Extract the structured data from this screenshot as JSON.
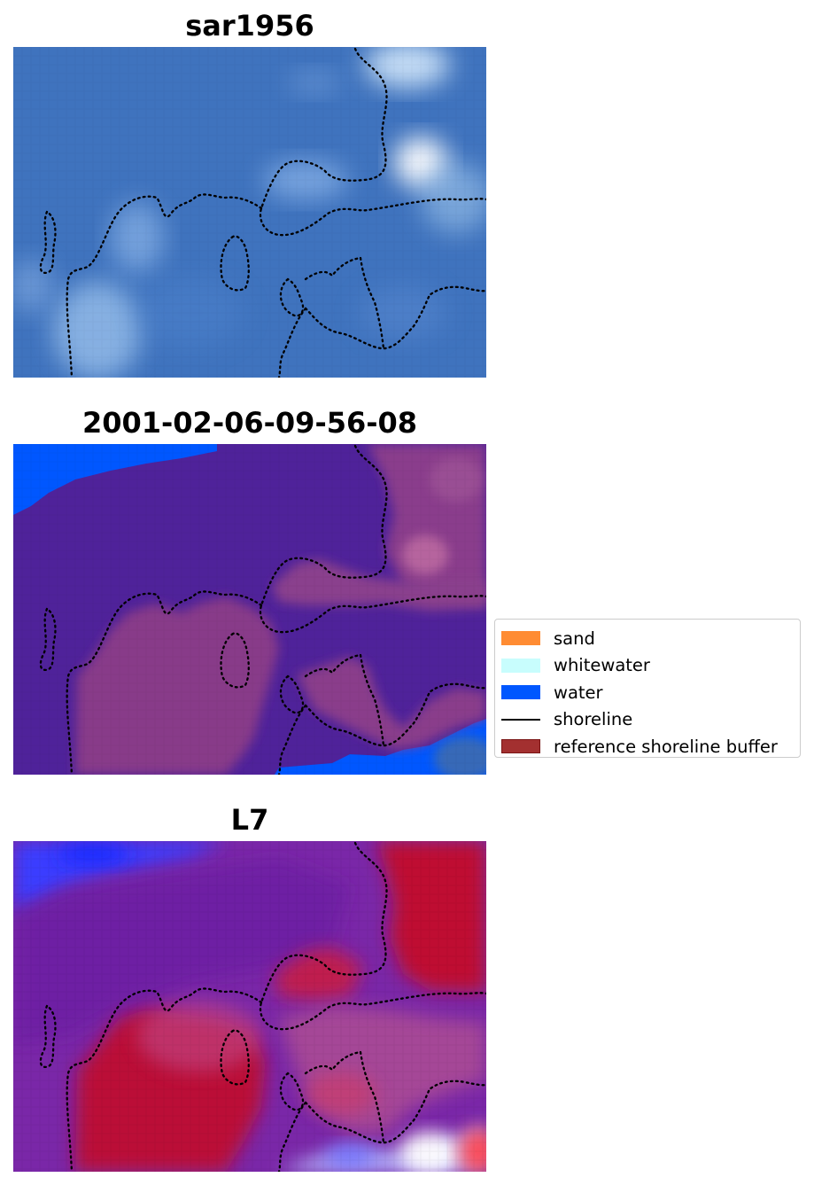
{
  "panels": [
    {
      "id": "sar",
      "title": "sar1956"
    },
    {
      "id": "classified",
      "title": "2001-02-06-09-56-08"
    },
    {
      "id": "index",
      "title": "L7"
    }
  ],
  "legend": {
    "items": [
      {
        "label": "sand",
        "kind": "patch",
        "color": "#ff8c33"
      },
      {
        "label": "whitewater",
        "kind": "patch",
        "color": "#c8fdfd"
      },
      {
        "label": "water",
        "kind": "patch",
        "color": "#0057ff"
      },
      {
        "label": "shoreline",
        "kind": "line",
        "color": "#000000"
      },
      {
        "label": "reference shoreline buffer",
        "kind": "patch",
        "color": "#a33030",
        "edge": "#7a1515"
      }
    ]
  },
  "colors": {
    "sar_blue": "#3f73be",
    "class_purple": "#4f229a",
    "water": "#0057ff",
    "index_red": "#bf0a30",
    "index_purple": "#7a27a8"
  }
}
